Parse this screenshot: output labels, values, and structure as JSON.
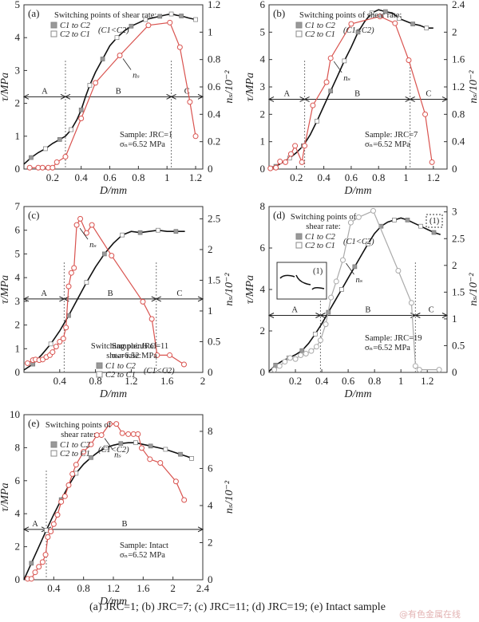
{
  "figure": {
    "caption": "(a) JRC=1; (b) JRC=7; (c) JRC=11; (d) JRC=19; (e) Intact sample",
    "watermark": "@有色金属在线",
    "colors": {
      "tau": "#111111",
      "ns_red": "#d9534f",
      "ns_gray": "#aaaaaa",
      "marker_filled": "#999999",
      "marker_open": "#ffffff"
    }
  },
  "chart_data": [
    {
      "type": "line",
      "panel": "(a)",
      "title": "",
      "xlabel": "D/mm",
      "ylabel": "τ/MPa",
      "y2label": "n_s/10^-2",
      "xlim": [
        0,
        1.25
      ],
      "ylim": [
        0,
        5
      ],
      "y2lim": [
        0,
        1.2
      ],
      "xticks": [
        0.2,
        0.4,
        0.6,
        0.8,
        1.0,
        1.2
      ],
      "yticks": [
        0,
        1,
        2,
        3,
        4,
        5
      ],
      "y2ticks": [
        0,
        0.2,
        0.4,
        0.6,
        0.8,
        1.0,
        1.2
      ],
      "legend": {
        "title": "Switching points of shear rate:",
        "entries": [
          "C1 to C2",
          "C2 to C1"
        ],
        "note": "(C1<C2)",
        "placement": "top-left"
      },
      "sample_text": [
        "Sample: JRC=1",
        "σn=6.52 MPa"
      ],
      "ns_annotation": "ns",
      "ns_color": "red",
      "zones": [
        {
          "label": "A",
          "from": 0,
          "to": 0.29
        },
        {
          "label": "B",
          "from": 0.29,
          "to": 1.03
        },
        {
          "label": "C",
          "from": 1.03,
          "to": 1.25
        }
      ],
      "zone_tau": 2.2,
      "series": [
        {
          "name": "τ",
          "axis": "left",
          "x": [
            0,
            0.05,
            0.1,
            0.15,
            0.2,
            0.25,
            0.29,
            0.33,
            0.37,
            0.4,
            0.43,
            0.46,
            0.5,
            0.55,
            0.6,
            0.65,
            0.7,
            0.75,
            0.8,
            0.85,
            0.9,
            0.95,
            1.0,
            1.03,
            1.07,
            1.1,
            1.15,
            1.2
          ],
          "y": [
            0.15,
            0.35,
            0.5,
            0.62,
            0.78,
            0.9,
            1.0,
            1.2,
            1.5,
            1.8,
            2.2,
            2.55,
            2.95,
            3.35,
            3.75,
            4.0,
            4.2,
            4.35,
            4.45,
            4.55,
            4.6,
            4.65,
            4.7,
            4.72,
            4.68,
            4.66,
            4.6,
            4.55
          ]
        },
        {
          "name": "ns",
          "axis": "right",
          "x": [
            0.04,
            0.1,
            0.13,
            0.17,
            0.2,
            0.23,
            0.29,
            0.4,
            0.5,
            0.67,
            0.87,
            1.02,
            1.09,
            1.16,
            1.2
          ],
          "y": [
            0.01,
            0.01,
            0.01,
            0.01,
            0.01,
            0.05,
            0.09,
            0.37,
            0.63,
            0.83,
            1.05,
            1.07,
            0.89,
            0.49,
            0.24
          ]
        }
      ]
    },
    {
      "type": "line",
      "panel": "(b)",
      "xlabel": "D/mm",
      "ylabel": "τ/MPa",
      "y2label": "n_s/10^-2",
      "xlim": [
        0,
        1.3
      ],
      "ylim": [
        0,
        6
      ],
      "y2lim": [
        0,
        2.4
      ],
      "xticks": [
        0.2,
        0.4,
        0.6,
        0.8,
        1.0,
        1.2
      ],
      "yticks": [
        0,
        1,
        2,
        3,
        4,
        5,
        6
      ],
      "y2ticks": [
        0,
        0.4,
        0.8,
        1.2,
        1.6,
        2.0,
        2.4
      ],
      "legend": {
        "title": "Switching points of shear rate:",
        "entries": [
          "C1 to C2",
          "C2 to C1"
        ],
        "note": "(C1<C2)",
        "placement": "top-left"
      },
      "sample_text": [
        "Sample: JRC=7",
        "σn=6.52 MPa"
      ],
      "ns_annotation": "ns",
      "ns_color": "red",
      "zones": [
        {
          "label": "A",
          "from": 0,
          "to": 0.26
        },
        {
          "label": "B",
          "from": 0.26,
          "to": 1.03
        },
        {
          "label": "C",
          "from": 1.03,
          "to": 1.3
        }
      ],
      "zone_tau": 2.55,
      "series": [
        {
          "name": "τ",
          "axis": "left",
          "x": [
            0,
            0.05,
            0.1,
            0.15,
            0.2,
            0.25,
            0.3,
            0.35,
            0.4,
            0.45,
            0.5,
            0.55,
            0.6,
            0.65,
            0.7,
            0.75,
            0.8,
            0.85,
            0.9,
            0.95,
            1.0,
            1.05,
            1.1,
            1.15,
            1.2
          ],
          "y": [
            0.05,
            0.1,
            0.25,
            0.4,
            0.6,
            0.85,
            1.25,
            1.75,
            2.3,
            2.85,
            3.4,
            3.95,
            4.45,
            5.0,
            5.4,
            5.7,
            5.82,
            5.75,
            5.7,
            5.5,
            5.4,
            5.3,
            5.25,
            5.15,
            5.15
          ]
        },
        {
          "name": "ns",
          "axis": "right",
          "x": [
            0.01,
            0.05,
            0.08,
            0.12,
            0.16,
            0.19,
            0.24,
            0.26,
            0.32,
            0.42,
            0.45,
            0.6,
            0.81,
            0.92,
            1.02,
            1.14,
            1.19
          ],
          "y": [
            0.01,
            0.02,
            0.11,
            0.1,
            0.22,
            0.34,
            0.1,
            0.34,
            0.93,
            1.27,
            1.62,
            2.12,
            2.23,
            2.13,
            1.59,
            0.8,
            0.1
          ]
        }
      ]
    },
    {
      "type": "line",
      "panel": "(c)",
      "xlabel": "D/mm",
      "ylabel": "τ/MPa",
      "y2label": "n_s/10^-2",
      "xlim": [
        0,
        2.0
      ],
      "ylim": [
        0,
        7
      ],
      "y2lim": [
        0,
        2.7
      ],
      "xticks": [
        0.4,
        0.8,
        1.2,
        1.6,
        2.0
      ],
      "yticks": [
        0,
        1,
        2,
        3,
        4,
        5,
        6,
        7
      ],
      "y2ticks": [
        0,
        0.5,
        1.0,
        1.5,
        2.0,
        2.5
      ],
      "legend": {
        "title": "Switching points of shear rate:",
        "entries": [
          "C1 to C2",
          "C2 to C1"
        ],
        "note": "(C1<C2)",
        "placement": "center"
      },
      "sample_text": [
        "Sample: JRC=11",
        "σn=6.52 MPa"
      ],
      "ns_annotation": "ns",
      "ns_color": "red",
      "zones": [
        {
          "label": "A",
          "from": 0,
          "to": 0.45
        },
        {
          "label": "B",
          "from": 0.45,
          "to": 1.48
        },
        {
          "label": "C",
          "from": 1.48,
          "to": 2.0
        }
      ],
      "zone_tau": 3.1,
      "series": [
        {
          "name": "τ",
          "axis": "left",
          "x": [
            0,
            0.1,
            0.2,
            0.3,
            0.4,
            0.5,
            0.6,
            0.7,
            0.8,
            0.9,
            1.0,
            1.1,
            1.2,
            1.3,
            1.4,
            1.5,
            1.6,
            1.7,
            1.8
          ],
          "y": [
            0.1,
            0.35,
            0.75,
            1.2,
            1.75,
            2.4,
            3.1,
            3.8,
            4.45,
            5.0,
            5.45,
            5.8,
            5.95,
            5.9,
            5.95,
            6.0,
            5.95,
            5.95,
            5.95
          ]
        },
        {
          "name": "ns",
          "axis": "right",
          "x": [
            0.04,
            0.1,
            0.13,
            0.17,
            0.21,
            0.25,
            0.29,
            0.32,
            0.36,
            0.4,
            0.44,
            0.47,
            0.5,
            0.53,
            0.56,
            0.59,
            0.63,
            0.7,
            0.76,
            0.98,
            1.33,
            1.43,
            1.49,
            1.63,
            1.79
          ],
          "y": [
            0.15,
            0.2,
            0.21,
            0.2,
            0.21,
            0.25,
            0.28,
            0.33,
            0.42,
            0.5,
            0.55,
            0.73,
            1.4,
            1.62,
            1.7,
            2.4,
            2.5,
            2.27,
            2.4,
            1.9,
            1.15,
            0.87,
            0.28,
            0.28,
            0.13
          ]
        }
      ]
    },
    {
      "type": "line",
      "panel": "(d)",
      "xlabel": "D/mm",
      "ylabel": "τ/MPa",
      "y2label": "n_s/10^-2",
      "xlim": [
        0,
        1.35
      ],
      "ylim": [
        0,
        8
      ],
      "y2lim": [
        0,
        3.1
      ],
      "xticks": [
        0.2,
        0.4,
        0.6,
        0.8,
        1.0,
        1.2
      ],
      "yticks": [
        0,
        2,
        4,
        6,
        8
      ],
      "y2ticks": [
        0,
        0.5,
        1.0,
        1.5,
        2.0,
        2.5,
        3.0
      ],
      "legend": {
        "title": "Switching points of shear rate:",
        "entries": [
          "C1 to C2",
          "C2 to C1"
        ],
        "note": "(C1<C2)",
        "placement": "top-left"
      },
      "inset_label": "(1)",
      "sample_text": [
        "Sample: JRC=19",
        "σn=6.52 MPa"
      ],
      "ns_annotation": "ns",
      "ns_color": "gray",
      "zones": [
        {
          "label": "A",
          "from": 0,
          "to": 0.39
        },
        {
          "label": "B",
          "from": 0.39,
          "to": 1.11
        },
        {
          "label": "C",
          "from": 1.11,
          "to": 1.35
        }
      ],
      "zone_tau": 2.75,
      "series": [
        {
          "name": "τ",
          "axis": "left",
          "x": [
            0,
            0.05,
            0.1,
            0.15,
            0.2,
            0.25,
            0.3,
            0.35,
            0.4,
            0.45,
            0.5,
            0.55,
            0.6,
            0.65,
            0.7,
            0.75,
            0.8,
            0.85,
            0.9,
            0.95,
            1.0,
            1.05,
            1.1,
            1.15,
            1.2,
            1.25,
            1.3
          ],
          "y": [
            0.05,
            0.35,
            0.55,
            0.7,
            0.85,
            1.05,
            1.4,
            1.85,
            2.35,
            2.9,
            3.45,
            4.0,
            4.55,
            5.1,
            5.65,
            6.2,
            6.7,
            7.05,
            7.25,
            7.35,
            7.45,
            7.35,
            7.2,
            7.05,
            6.9,
            6.75,
            6.65
          ]
        },
        {
          "name": "ns",
          "axis": "right",
          "x": [
            0.04,
            0.08,
            0.12,
            0.16,
            0.2,
            0.24,
            0.28,
            0.32,
            0.36,
            0.39,
            0.43,
            0.47,
            0.51,
            0.56,
            0.62,
            0.68,
            0.79,
            0.98,
            1.08,
            1.11,
            1.14,
            1.29
          ],
          "y": [
            0.05,
            0.12,
            0.2,
            0.27,
            0.25,
            0.32,
            0.35,
            0.4,
            0.48,
            0.6,
            0.9,
            1.4,
            1.7,
            2.1,
            2.8,
            2.9,
            3.02,
            1.9,
            1.3,
            0.12,
            0.05,
            0.05
          ]
        }
      ]
    },
    {
      "type": "line",
      "panel": "(e)",
      "xlabel": "D/mm",
      "ylabel": "τ/MPa",
      "y2label": "n_s/10^-2",
      "xlim": [
        0,
        2.4
      ],
      "ylim": [
        0,
        10
      ],
      "y2lim": [
        0,
        8.9
      ],
      "xticks": [
        0.4,
        0.8,
        1.2,
        1.6,
        2.0,
        2.4
      ],
      "yticks": [
        0,
        2,
        4,
        6,
        8,
        10
      ],
      "y2ticks": [
        0,
        2,
        4,
        6,
        8
      ],
      "legend": {
        "title": "Switching points of shear rate:",
        "entries": [
          "C1 to C2",
          "C2 to C1"
        ],
        "note": "(C1<C2)",
        "placement": "top-left"
      },
      "sample_text": [
        "Sample: Intact",
        "σn=6.52 MPa"
      ],
      "ns_annotation": "ns",
      "ns_color": "red",
      "zones": [
        {
          "label": "A",
          "from": 0,
          "to": 0.3
        },
        {
          "label": "B",
          "from": 0.3,
          "to": 2.4
        }
      ],
      "zone_tau": 3.05,
      "series": [
        {
          "name": "τ",
          "axis": "left",
          "x": [
            0,
            0.1,
            0.2,
            0.3,
            0.4,
            0.5,
            0.6,
            0.7,
            0.8,
            0.9,
            1.0,
            1.1,
            1.2,
            1.3,
            1.4,
            1.5,
            1.6,
            1.7,
            1.8,
            1.9,
            2.0,
            2.1,
            2.2,
            2.25
          ],
          "y": [
            0,
            1.0,
            2.0,
            3.0,
            3.95,
            4.85,
            5.7,
            6.45,
            7.0,
            7.4,
            7.75,
            8.0,
            8.15,
            8.25,
            8.3,
            8.3,
            8.2,
            8.1,
            8.0,
            7.9,
            7.75,
            7.6,
            7.45,
            7.35
          ]
        },
        {
          "name": "ns",
          "axis": "right",
          "x": [
            0.05,
            0.1,
            0.15,
            0.2,
            0.25,
            0.29,
            0.32,
            0.36,
            0.4,
            0.45,
            0.5,
            0.55,
            0.6,
            0.65,
            0.7,
            0.8,
            0.9,
            0.98,
            1.04,
            1.15,
            1.24,
            1.32,
            1.4,
            1.47,
            1.53,
            1.58,
            1.69,
            1.83,
            2.04,
            2.15
          ],
          "y": [
            0.05,
            0.05,
            0.4,
            0.7,
            0.95,
            1.35,
            2.3,
            2.6,
            3.0,
            3.5,
            4.2,
            4.5,
            5.1,
            5.7,
            6.2,
            6.9,
            7.3,
            7.8,
            7.8,
            8.4,
            8.4,
            7.9,
            7.85,
            7.85,
            7.85,
            7.1,
            6.5,
            6.3,
            5.3,
            4.3
          ]
        }
      ]
    }
  ]
}
